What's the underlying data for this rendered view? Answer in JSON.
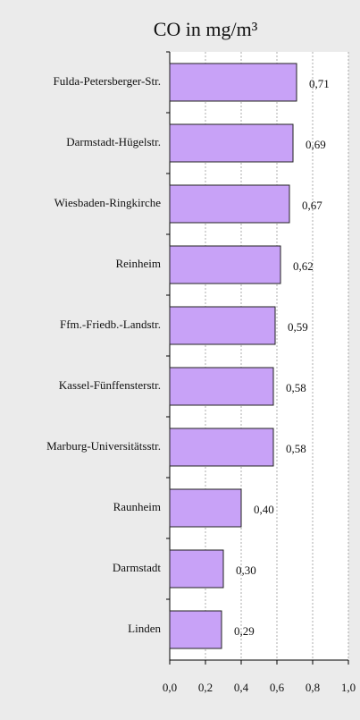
{
  "chart_data": {
    "type": "bar",
    "orientation": "horizontal",
    "title": "CO in mg/m³",
    "categories": [
      "Fulda-Petersberger-Str.",
      "Darmstadt-Hügelstr.",
      "Wiesbaden-Ringkirche",
      "Reinheim",
      "Ffm.-Friedb.-Landstr.",
      "Kassel-Fünffensterstr.",
      "Marburg-Universitätsstr.",
      "Raunheim",
      "Darmstadt",
      "Linden"
    ],
    "values": [
      0.71,
      0.69,
      0.67,
      0.62,
      0.59,
      0.58,
      0.58,
      0.4,
      0.3,
      0.29
    ],
    "value_labels": [
      "0,71",
      "0,69",
      "0,67",
      "0,62",
      "0,59",
      "0,58",
      "0,58",
      "0,40",
      "0,30",
      "0,29"
    ],
    "color": "#c8a2f7",
    "xlim": [
      0,
      1
    ],
    "xticks": [
      {
        "value": 0,
        "label": "0,0"
      },
      {
        "value": 0.2,
        "label": "0,2"
      },
      {
        "value": 0.4,
        "label": "0,4"
      },
      {
        "value": 0.6,
        "label": "0,6"
      },
      {
        "value": 0.8,
        "label": "0,8"
      },
      {
        "value": 1,
        "label": "1,0"
      }
    ],
    "grid": true
  }
}
